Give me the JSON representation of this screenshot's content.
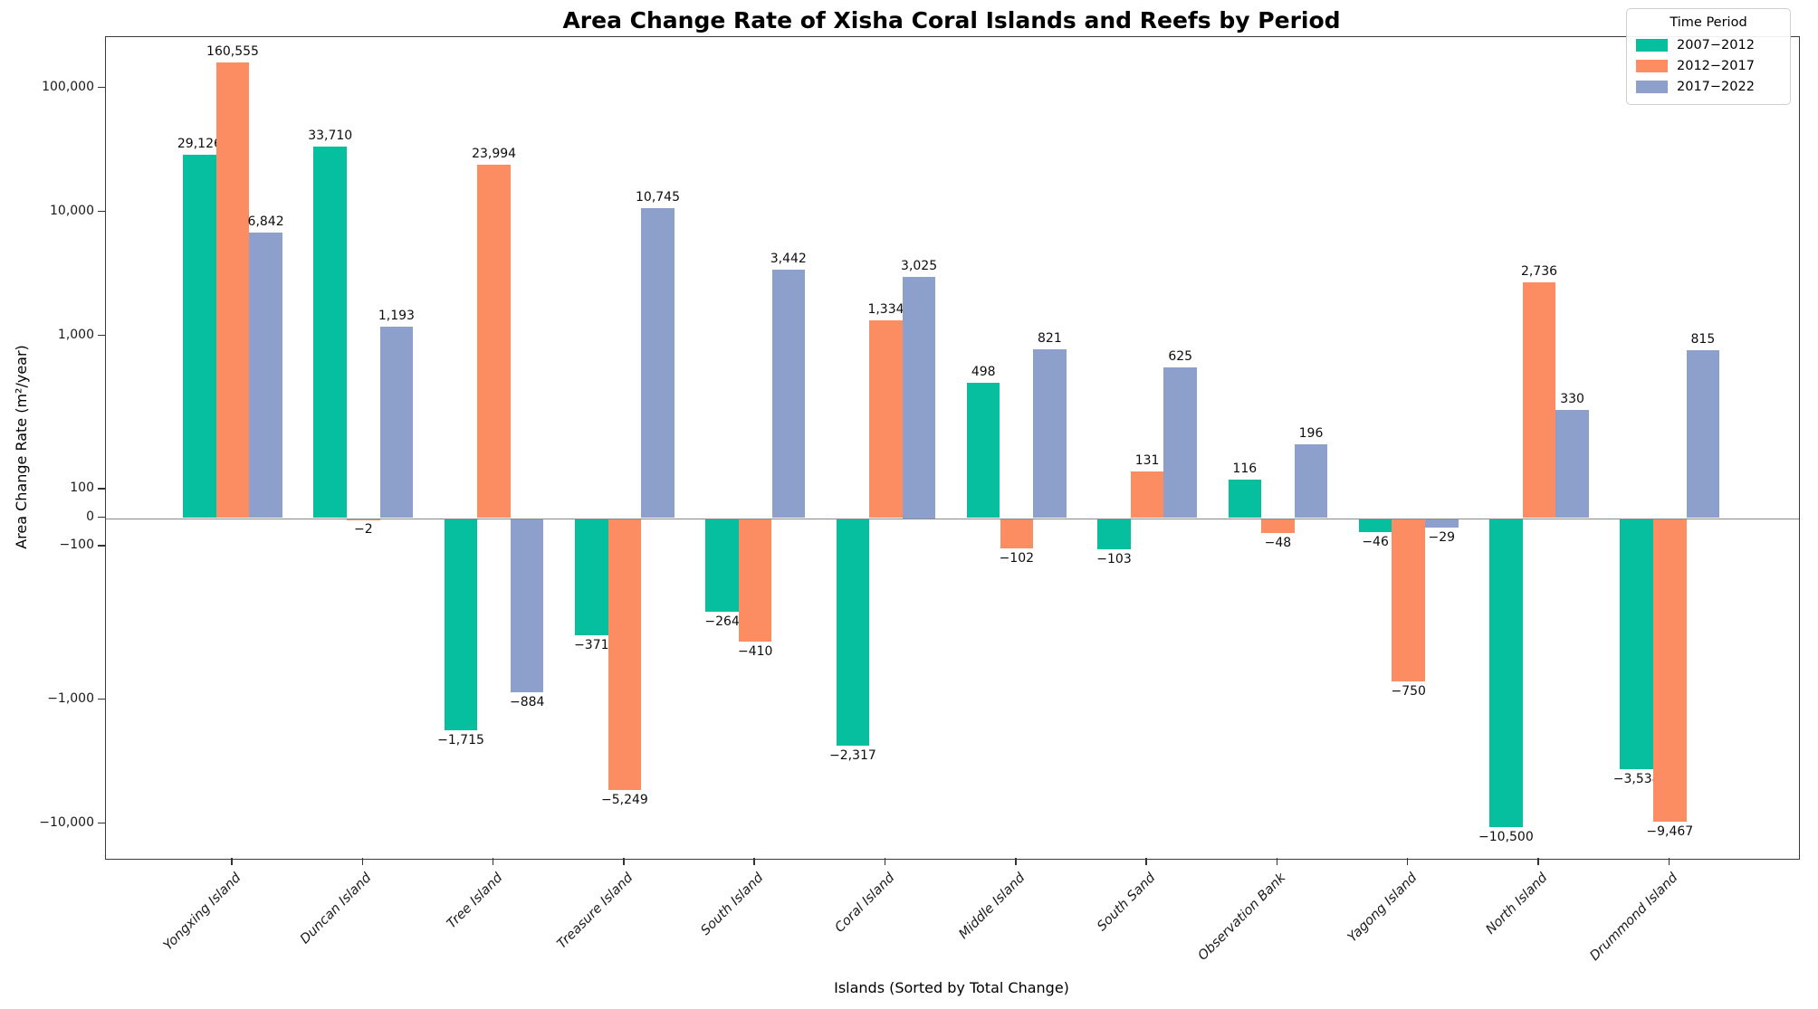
{
  "title": "Area Change Rate of Xisha Coral Islands and Reefs by Period",
  "xlabel": "Islands (Sorted by Total Change)",
  "ylabel": "Area Change Rate (m²/year)",
  "legend": {
    "title": "Time Period",
    "entries": [
      {
        "label": "2007−2012",
        "color": "#06bf9e"
      },
      {
        "label": "2012−2017",
        "color": "#fc8d62"
      },
      {
        "label": "2017−2022",
        "color": "#8da0cb"
      }
    ]
  },
  "chart_data": {
    "type": "bar",
    "title": "Area Change Rate of Xisha Coral Islands and Reefs by Period",
    "xlabel": "Islands (Sorted by Total Change)",
    "ylabel": "Area Change Rate (m²/year)",
    "scale": "symlog",
    "linear_threshold": 100,
    "yticks": [
      100000,
      10000,
      1000,
      100,
      0,
      -100,
      -1000,
      -10000
    ],
    "ylim": [
      -20000,
      250000
    ],
    "legend_position": "upper right",
    "grid": false,
    "categories": [
      "Yongxing Island",
      "Duncan Island",
      "Tree Island",
      "Treasure Island",
      "South Island",
      "Coral Island",
      "Middle Island",
      "South Sand",
      "Observation Bank",
      "Yagong Island",
      "North Island",
      "Drummond Island"
    ],
    "series": [
      {
        "name": "2007−2012",
        "color": "#06bf9e",
        "values": [
          29126,
          33710,
          -1715,
          -371,
          -264,
          -2317,
          498,
          -103,
          116,
          -46,
          -10500,
          -3538
        ]
      },
      {
        "name": "2012−2017",
        "color": "#fc8d62",
        "values": [
          160555,
          -2,
          23994,
          -5249,
          -410,
          1334,
          -102,
          131,
          -48,
          -750,
          2736,
          -9467
        ]
      },
      {
        "name": "2017−2022",
        "color": "#8da0cb",
        "values": [
          6842,
          1193,
          -884,
          10745,
          3442,
          3025,
          821,
          625,
          196,
          -29,
          330,
          815
        ]
      }
    ]
  }
}
